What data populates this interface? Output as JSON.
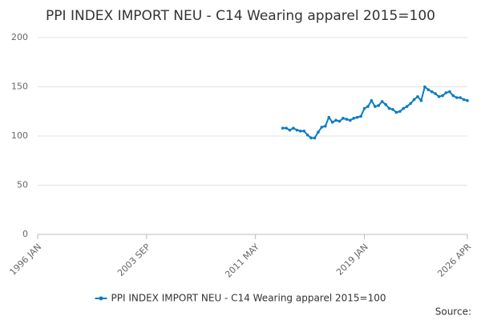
{
  "chart_data": {
    "type": "line",
    "title": "PPI INDEX IMPORT NEU - C14 Wearing apparel 2015=100",
    "x": [
      "2013 APR",
      "2013 JUL",
      "2013 OCT",
      "2014 JAN",
      "2014 APR",
      "2014 JUL",
      "2014 OCT",
      "2015 JAN",
      "2015 APR",
      "2015 JUL",
      "2015 OCT",
      "2016 JAN",
      "2016 APR",
      "2016 JUL",
      "2016 OCT",
      "2017 JAN",
      "2017 APR",
      "2017 JUL",
      "2017 OCT",
      "2018 JAN",
      "2018 APR",
      "2018 JUL",
      "2018 OCT",
      "2019 JAN",
      "2019 APR",
      "2019 JUL",
      "2019 OCT",
      "2020 JAN",
      "2020 APR",
      "2020 JUL",
      "2020 OCT",
      "2021 JAN",
      "2021 APR",
      "2021 JUL",
      "2021 OCT",
      "2022 JAN",
      "2022 APR",
      "2022 JUL",
      "2022 OCT",
      "2023 JAN",
      "2023 APR",
      "2023 JUL",
      "2023 OCT",
      "2024 JAN",
      "2024 APR",
      "2024 JUL",
      "2024 OCT",
      "2025 JAN",
      "2025 APR",
      "2025 JUL",
      "2025 OCT",
      "2026 JAN",
      "2026 APR"
    ],
    "series": [
      {
        "name": "PPI INDEX IMPORT NEU - C14 Wearing apparel 2015=100",
        "color": "#0b7cc1",
        "values": [
          108,
          108,
          106,
          108,
          106,
          105,
          105,
          101,
          98,
          98,
          104,
          109,
          110,
          119,
          114,
          116,
          115,
          118,
          117,
          116,
          118,
          119,
          120,
          128,
          130,
          136,
          130,
          131,
          135,
          132,
          128,
          127,
          124,
          125,
          128,
          130,
          133,
          137,
          140,
          136,
          150,
          147,
          145,
          143,
          140,
          141,
          144,
          145,
          141,
          139,
          139,
          137,
          136
        ]
      }
    ],
    "xlim": [
      "1996 JAN",
      "2026 APR"
    ],
    "xticks": [
      "1996 JAN",
      "2003 SEP",
      "2011 MAY",
      "2019 JAN",
      "2026 APR"
    ],
    "ylim": [
      0,
      200
    ],
    "yticks": [
      0,
      50,
      100,
      150,
      200
    ],
    "grid": true,
    "legend": "bottom",
    "source": "Source:"
  }
}
